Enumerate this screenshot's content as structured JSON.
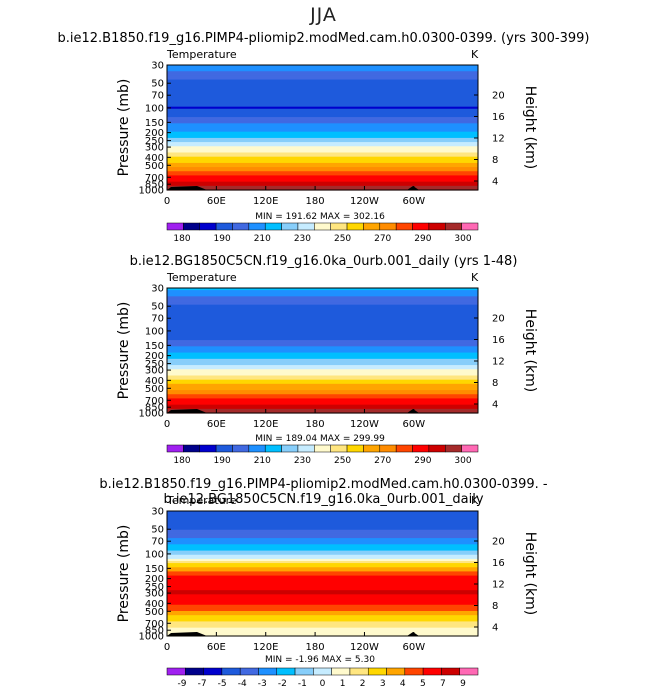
{
  "figure": {
    "title": "JJA",
    "panels": [
      {
        "title": "b.ie12.B1850.f19_g16.PIMP4-pliomip2.modMed.cam.h0.0300-0399. (yrs 300-399)",
        "variable": "Temperature",
        "units": "K",
        "minmax": "MIN = 191.62   MAX = 302.16"
      },
      {
        "title": "b.ie12.BG1850C5CN.f19_g16.0ka_0urb.001_daily (yrs 1-48)",
        "variable": "Temperature",
        "units": "K",
        "minmax": "MIN = 189.04   MAX = 299.99"
      },
      {
        "title": "b.ie12.B1850.f19_g16.PIMP4-pliomip2.modMed.cam.h0.0300-0399. - b.ie12.BG1850C5CN.f19_g16.0ka_0urb.001_daily",
        "variable": "Temperature",
        "units": "K",
        "minmax": "MIN =  -1.96   MAX =   5.30"
      }
    ]
  },
  "chart_data": [
    {
      "type": "heatmap",
      "xlabel": "",
      "ylabel": "Pressure (mb)",
      "ylabel_right": "Height (km)",
      "x_ticks": [
        "0",
        "60E",
        "120E",
        "180",
        "120W",
        "60W"
      ],
      "y_ticks": [
        "30",
        "50",
        "70",
        "100",
        "150",
        "200",
        "250",
        "300",
        "400",
        "500",
        "700",
        "850",
        "1000"
      ],
      "y_ticks_right": [
        "20",
        "16",
        "12",
        "8",
        "4"
      ],
      "colorbar_labels": [
        "180",
        "190",
        "210",
        "230",
        "250",
        "270",
        "290",
        "300"
      ],
      "colorbar_colors": [
        "#a020f0",
        "#00008b",
        "#0000cd",
        "#1e5adc",
        "#4169e1",
        "#1e90ff",
        "#00bfff",
        "#87cefa",
        "#c6ecff",
        "#fffacd",
        "#ffe680",
        "#ffd700",
        "#ffa500",
        "#ff8c00",
        "#ff4500",
        "#ff0000",
        "#cd0000",
        "#a52a2a",
        "#ff69b4"
      ],
      "profile": [
        {
          "p": 30,
          "t": 226
        },
        {
          "p": 50,
          "t": 212
        },
        {
          "p": 70,
          "t": 210
        },
        {
          "p": 100,
          "t": 209
        },
        {
          "p": 130,
          "t": 214
        },
        {
          "p": 150,
          "t": 220
        },
        {
          "p": 200,
          "t": 228
        },
        {
          "p": 250,
          "t": 236
        },
        {
          "p": 300,
          "t": 244
        },
        {
          "p": 400,
          "t": 256
        },
        {
          "p": 500,
          "t": 265
        },
        {
          "p": 700,
          "t": 280
        },
        {
          "p": 850,
          "t": 289
        },
        {
          "p": 1000,
          "t": 296
        }
      ],
      "min": 191.62,
      "max": 302.16
    },
    {
      "type": "heatmap",
      "xlabel": "",
      "ylabel": "Pressure (mb)",
      "ylabel_right": "Height (km)",
      "x_ticks": [
        "0",
        "60E",
        "120E",
        "180",
        "120W",
        "60W"
      ],
      "y_ticks": [
        "30",
        "50",
        "70",
        "100",
        "150",
        "200",
        "250",
        "300",
        "400",
        "500",
        "700",
        "850",
        "1000"
      ],
      "y_ticks_right": [
        "20",
        "16",
        "12",
        "8",
        "4"
      ],
      "colorbar_labels": [
        "180",
        "190",
        "210",
        "230",
        "250",
        "270",
        "290",
        "300"
      ],
      "colorbar_colors": [
        "#a020f0",
        "#00008b",
        "#0000cd",
        "#1e5adc",
        "#4169e1",
        "#1e90ff",
        "#00bfff",
        "#87cefa",
        "#c6ecff",
        "#fffacd",
        "#ffe680",
        "#ffd700",
        "#ffa500",
        "#ff8c00",
        "#ff4500",
        "#ff0000",
        "#cd0000",
        "#a52a2a",
        "#ff69b4"
      ],
      "profile": [
        {
          "p": 30,
          "t": 225
        },
        {
          "p": 50,
          "t": 211
        },
        {
          "p": 70,
          "t": 209
        },
        {
          "p": 100,
          "t": 207
        },
        {
          "p": 130,
          "t": 212
        },
        {
          "p": 150,
          "t": 218
        },
        {
          "p": 200,
          "t": 226
        },
        {
          "p": 250,
          "t": 234
        },
        {
          "p": 300,
          "t": 242
        },
        {
          "p": 400,
          "t": 254
        },
        {
          "p": 500,
          "t": 263
        },
        {
          "p": 700,
          "t": 278
        },
        {
          "p": 850,
          "t": 287
        },
        {
          "p": 1000,
          "t": 294
        }
      ],
      "min": 189.04,
      "max": 299.99
    },
    {
      "type": "heatmap",
      "xlabel": "",
      "ylabel": "Pressure (mb)",
      "ylabel_right": "Height (km)",
      "x_ticks": [
        "0",
        "60E",
        "120E",
        "180",
        "120W",
        "60W"
      ],
      "y_ticks": [
        "30",
        "50",
        "70",
        "100",
        "150",
        "200",
        "250",
        "300",
        "400",
        "500",
        "700",
        "850",
        "1000"
      ],
      "y_ticks_right": [
        "20",
        "16",
        "12",
        "8",
        "4"
      ],
      "colorbar_labels": [
        "-9",
        "-7",
        "-5",
        "-4",
        "-3",
        "-2",
        "-1",
        "0",
        "1",
        "2",
        "3",
        "4",
        "5",
        "7",
        "9"
      ],
      "colorbar_colors": [
        "#a020f0",
        "#00008b",
        "#0000cd",
        "#1e5adc",
        "#4169e1",
        "#1e90ff",
        "#00bfff",
        "#87cefa",
        "#c6ecff",
        "#fffacd",
        "#ffe680",
        "#ffd700",
        "#ffa500",
        "#ff4500",
        "#ff0000",
        "#cd0000",
        "#ff69b4"
      ],
      "profile": [
        {
          "p": 30,
          "t": -0.5
        },
        {
          "p": 50,
          "t": -0.3
        },
        {
          "p": 70,
          "t": 0.4
        },
        {
          "p": 100,
          "t": 1.3
        },
        {
          "p": 150,
          "t": 3.4
        },
        {
          "p": 200,
          "t": 4.2
        },
        {
          "p": 300,
          "t": 4.5
        },
        {
          "p": 400,
          "t": 4.1
        },
        {
          "p": 500,
          "t": 3.5
        },
        {
          "p": 700,
          "t": 2.6
        },
        {
          "p": 850,
          "t": 2.2
        },
        {
          "p": 1000,
          "t": 2.0
        }
      ],
      "min": -1.96,
      "max": 5.3
    }
  ]
}
